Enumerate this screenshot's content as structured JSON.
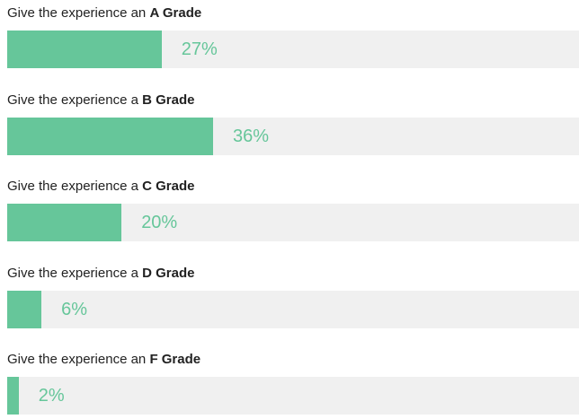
{
  "chart_data": {
    "type": "bar",
    "orientation": "horizontal",
    "categories": [
      "Give the experience an A Grade",
      "Give the experience a B Grade",
      "Give the experience a C Grade",
      "Give the experience a D Grade",
      "Give the experience an F Grade"
    ],
    "values": [
      27,
      36,
      20,
      6,
      2
    ],
    "value_labels": [
      "27%",
      "36%",
      "20%",
      "6%",
      "2%"
    ],
    "color": "#66c69a",
    "track_color": "#f0f0f0",
    "label_color": "#66c69a",
    "xlim": [
      0,
      100
    ]
  }
}
